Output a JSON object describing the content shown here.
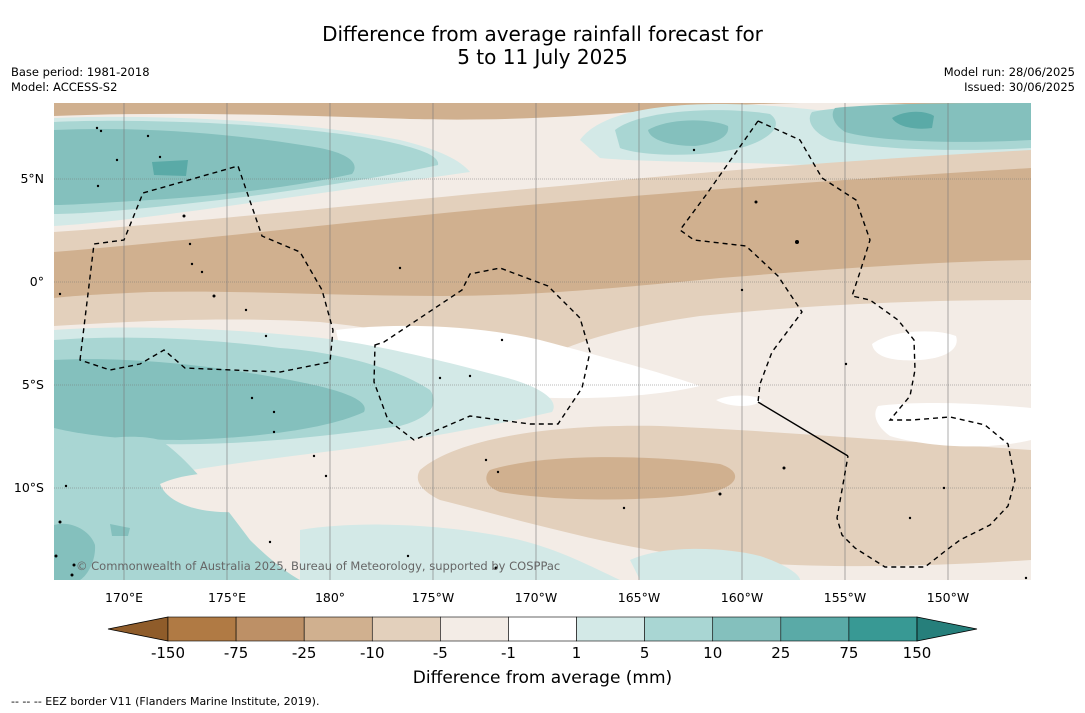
{
  "header": {
    "title_line1": "Difference from average rainfall forecast for",
    "title_line2": "5 to 11 July 2025",
    "base_period": "Base period: 1981-2018",
    "model": "Model: ACCESS-S2",
    "model_run": "Model run: 28/06/2025",
    "issued": "Issued: 30/06/2025"
  },
  "map": {
    "lat_labels": [
      "5°N",
      "0°",
      "5°S",
      "10°S"
    ],
    "lon_labels": [
      "170°E",
      "175°E",
      "180°",
      "175°W",
      "170°W",
      "165°W",
      "160°W",
      "155°W",
      "150°W"
    ],
    "copyright": "© Commonwealth of Australia 2025, Bureau of Meteorology, supported by COSPPac",
    "colors": {
      "dry_strong": "#a9743c",
      "dry_150": "#b98c60",
      "dry_75": "#d0b08f",
      "dry_25": "#e3d0bc",
      "dry_10": "#f3ece6",
      "neutral": "#ffffff",
      "wet_5": "#d3e9e7",
      "wet_10": "#a9d6d3",
      "wet_25": "#84c0bd",
      "wet_75": "#5aaaa7",
      "wet_strong": "#2d908b"
    }
  },
  "colorbar": {
    "tick_labels": [
      "-150",
      "-75",
      "-25",
      "-10",
      "-5",
      "-1",
      "1",
      "5",
      "10",
      "25",
      "75",
      "150"
    ],
    "segment_colors": [
      "#b07a44",
      "#bd9066",
      "#d0b08f",
      "#e3d0bc",
      "#f3ece6",
      "#ffffff",
      "#d3e9e7",
      "#a9d6d3",
      "#84c0bd",
      "#5aaaa7",
      "#389994"
    ],
    "end_low": "#8f5c2a",
    "end_high": "#267f7b",
    "title": "Difference from average (mm)"
  },
  "footer": "--  --  -- EEZ border V11 (Flanders Marine Institute, 2019)."
}
